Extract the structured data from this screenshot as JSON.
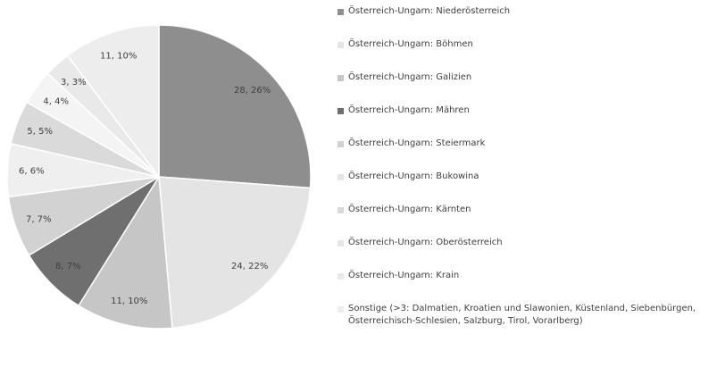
{
  "chart_data": {
    "type": "pie",
    "categories": [
      "Österreich-Ungarn: Niederösterreich",
      "Österreich-Ungarn: Böhmen",
      "Österreich-Ungarn: Galizien",
      "Österreich-Ungarn: Mähren",
      "Österreich-Ungarn: Steiermark",
      "Österreich-Ungarn: Bukowina",
      "Österreich-Ungarn: Kärnten",
      "Österreich-Ungarn: Oberösterreich",
      "Österreich-Ungarn: Krain",
      "Sonstige (>3: Dalmatien, Kroatien und Slawonien, Küstenland, Siebenbürgen, Österreichisch-Schlesien, Salzburg, Tirol, Vorarlberg)"
    ],
    "values": [
      28,
      24,
      11,
      8,
      7,
      6,
      5,
      4,
      3,
      11
    ],
    "value_labels": [
      "28, 26%",
      "24, 22%",
      "11, 10%",
      "8, 7%",
      "7, 7%",
      "6, 6%",
      "5, 5%",
      "4, 4%",
      "3, 3%",
      "11, 10%"
    ],
    "colors": [
      "#8e8e8e",
      "#e4e4e4",
      "#c6c6c6",
      "#6f6f6f",
      "#d2d2d2",
      "#efefef",
      "#dadada",
      "#f4f4f4",
      "#e9e9e9",
      "#ededed"
    ],
    "legend": "right"
  }
}
